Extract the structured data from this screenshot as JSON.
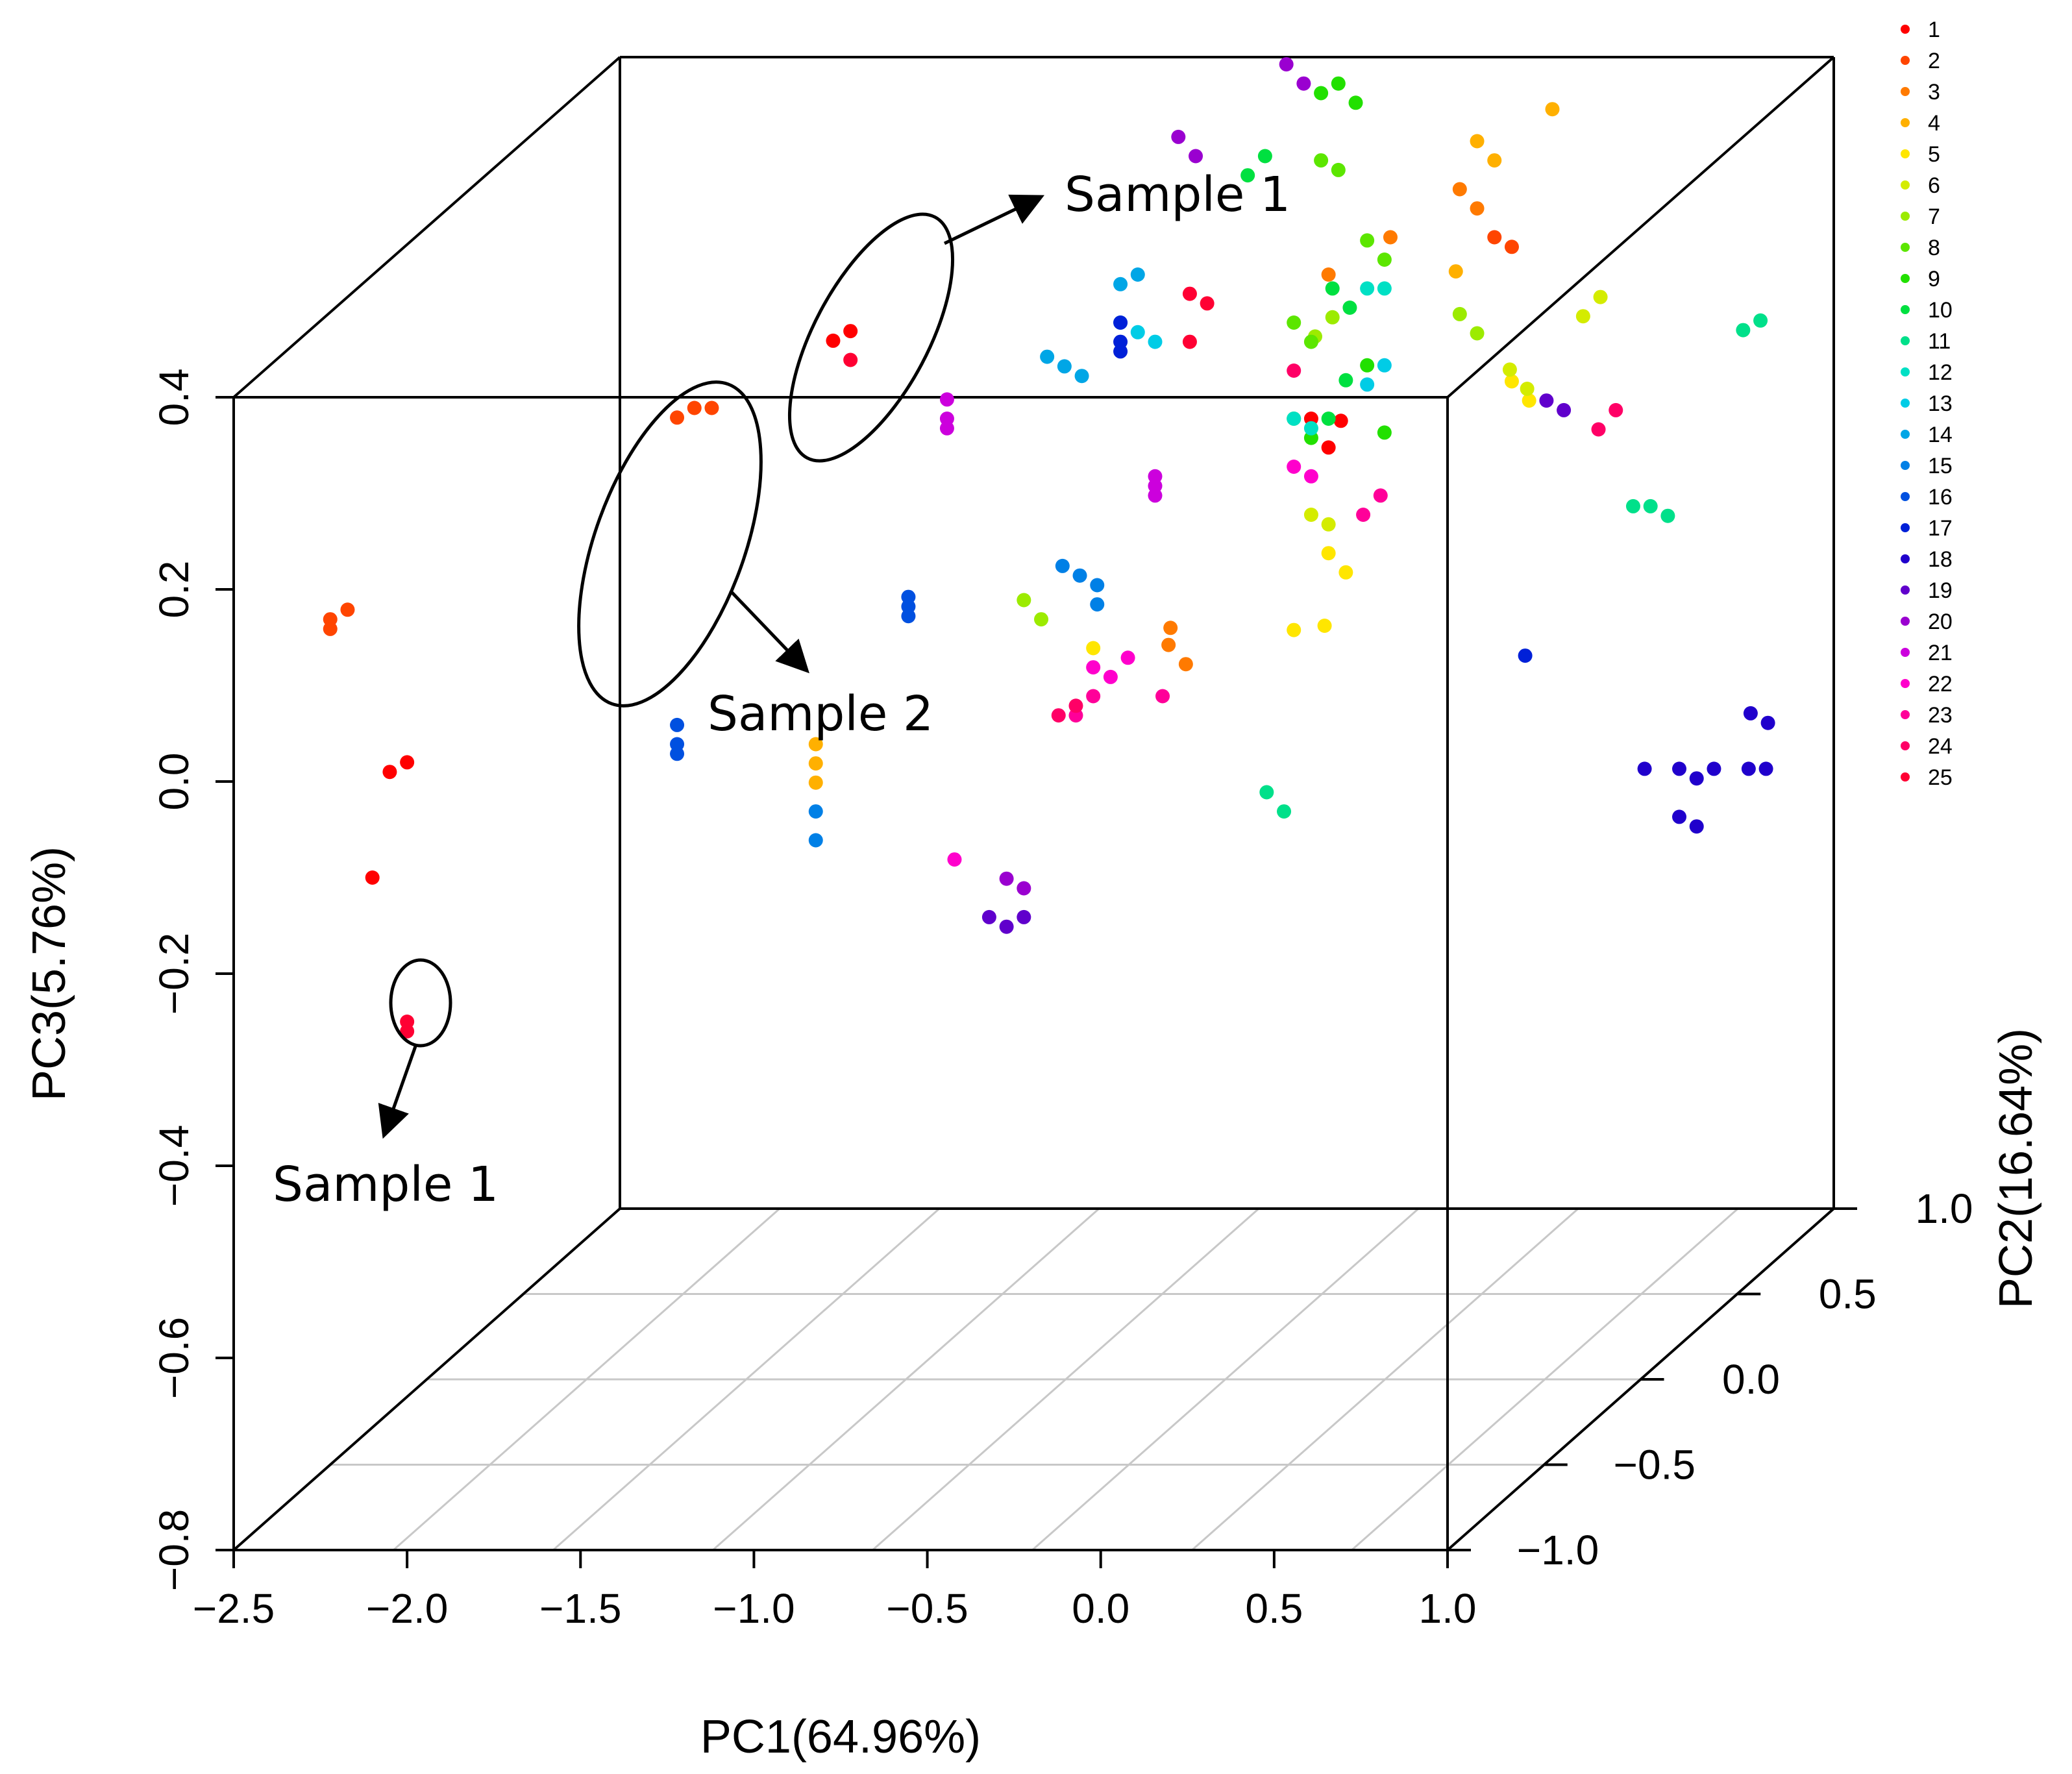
{
  "chart_data": {
    "type": "scatter",
    "projection": "3d",
    "title": "",
    "xlabel": "PC1(64.96%)",
    "ylabel": "PC2(16.64%)",
    "zlabel": "PC3(5.76%)",
    "xlim": [
      -2.5,
      1.0
    ],
    "ylim": [
      -1.0,
      1.0
    ],
    "zlim": [
      -0.8,
      0.4
    ],
    "xticks": [
      "-2.5",
      "-2.0",
      "-1.5",
      "-1.0",
      "-0.5",
      "0.0",
      "0.5",
      "1.0"
    ],
    "yticks": [
      "-1.0",
      "-0.5",
      "0.0",
      "0.5",
      "1.0"
    ],
    "zticks": [
      "-0.8",
      "-0.6",
      "-0.4",
      "-0.2",
      "0.0",
      "0.2",
      "0.4"
    ],
    "legend_position": "right",
    "legend_labels": [
      "1",
      "2",
      "3",
      "4",
      "5",
      "6",
      "7",
      "8",
      "9",
      "10",
      "11",
      "12",
      "13",
      "14",
      "15",
      "16",
      "17",
      "18",
      "19",
      "20",
      "21",
      "22",
      "23",
      "24",
      "25"
    ],
    "colors": [
      "#ff0000",
      "#ff4500",
      "#ff7a00",
      "#ffb000",
      "#ffe600",
      "#d4ec00",
      "#9ceb00",
      "#5ce600",
      "#22e000",
      "#00e040",
      "#00e08a",
      "#00e0c4",
      "#00cce6",
      "#00a6e6",
      "#0080e6",
      "#0050e0",
      "#0020d8",
      "#2000cc",
      "#6000cc",
      "#9a00d0",
      "#cc00dd",
      "#ff00cc",
      "#ff0099",
      "#ff0066",
      "#ff0033"
    ],
    "group_points": [
      [
        [
          -1.0,
          -0.5,
          0.38
        ],
        [
          -1.05,
          -0.5,
          0.37
        ],
        [
          -2.0,
          -1.0,
          0.02
        ],
        [
          -2.05,
          -1.0,
          0.01
        ],
        [
          -2.1,
          -1.0,
          -0.1
        ],
        [
          0.05,
          0.0,
          0.2
        ],
        [
          0.08,
          0.1,
          0.18
        ],
        [
          0.1,
          0.0,
          0.17
        ]
      ],
      [
        [
          -1.4,
          -0.5,
          0.3
        ],
        [
          -1.45,
          -0.5,
          0.3
        ],
        [
          -1.5,
          -0.5,
          0.29
        ],
        [
          -2.5,
          -0.5,
          0.08
        ],
        [
          -2.45,
          -0.5,
          0.09
        ],
        [
          -2.5,
          -0.5,
          0.07
        ],
        [
          0.3,
          0.5,
          0.3
        ],
        [
          0.35,
          0.5,
          0.29
        ]
      ],
      [
        [
          0.1,
          0.0,
          0.35
        ],
        [
          0.2,
          0.5,
          0.35
        ],
        [
          0.25,
          0.5,
          0.33
        ],
        [
          -0.25,
          -0.2,
          0.0
        ],
        [
          -0.2,
          -0.2,
          -0.02
        ],
        [
          0.0,
          0.5,
          0.3
        ],
        [
          -0.3,
          -0.1,
          0.0
        ]
      ],
      [
        [
          0.25,
          0.5,
          0.4
        ],
        [
          0.3,
          0.5,
          0.38
        ],
        [
          0.3,
          0.3,
          0.3
        ],
        [
          -1.1,
          -0.5,
          -0.05
        ],
        [
          -1.1,
          -0.5,
          -0.07
        ],
        [
          -1.1,
          -0.5,
          -0.09
        ],
        [
          0.3,
          0.8,
          0.38
        ]
      ],
      [
        [
          0.1,
          0.0,
          0.06
        ],
        [
          0.15,
          0.0,
          0.04
        ],
        [
          0.2,
          -0.2,
          0.02
        ],
        [
          0.35,
          0.5,
          0.15
        ],
        [
          0.4,
          0.5,
          0.13
        ],
        [
          -0.3,
          -0.5,
          0.05
        ],
        [
          0.0,
          0.0,
          -0.02
        ]
      ],
      [
        [
          0.05,
          0.0,
          0.1
        ],
        [
          0.1,
          0.0,
          0.09
        ],
        [
          0.4,
          0.4,
          0.18
        ],
        [
          0.45,
          0.4,
          0.16
        ],
        [
          0.5,
          0.6,
          0.2
        ],
        [
          0.55,
          0.6,
          0.22
        ]
      ],
      [
        [
          -0.5,
          -0.5,
          0.1
        ],
        [
          -0.45,
          -0.5,
          0.08
        ],
        [
          0.2,
          0.5,
          0.22
        ],
        [
          0.25,
          0.5,
          0.2
        ],
        [
          -0.05,
          0.2,
          0.25
        ],
        [
          0.0,
          0.2,
          0.27
        ]
      ],
      [
        [
          0.0,
          0.0,
          0.3
        ],
        [
          0.05,
          0.0,
          0.28
        ],
        [
          0.1,
          0.2,
          0.35
        ],
        [
          0.15,
          0.2,
          0.33
        ],
        [
          -0.2,
          0.5,
          0.38
        ],
        [
          -0.15,
          0.5,
          0.37
        ]
      ],
      [
        [
          -0.2,
          0.5,
          0.45
        ],
        [
          -0.15,
          0.5,
          0.46
        ],
        [
          -0.1,
          0.5,
          0.44
        ],
        [
          0.0,
          0.0,
          0.2
        ],
        [
          0.05,
          0.0,
          0.18
        ],
        [
          0.1,
          0.2,
          0.22
        ],
        [
          0.15,
          0.2,
          0.15
        ]
      ],
      [
        [
          -0.3,
          0.3,
          0.4
        ],
        [
          -0.25,
          0.3,
          0.42
        ],
        [
          0.0,
          0.2,
          0.3
        ],
        [
          0.05,
          0.2,
          0.28
        ],
        [
          0.1,
          0.0,
          0.2
        ],
        [
          0.15,
          0.0,
          0.24
        ]
      ],
      [
        [
          0.7,
          0.5,
          0.02
        ],
        [
          0.75,
          0.5,
          0.02
        ],
        [
          0.8,
          0.5,
          0.01
        ],
        [
          0.2,
          -0.5,
          -0.1
        ],
        [
          0.25,
          -0.5,
          -0.12
        ],
        [
          0.85,
          0.8,
          0.15
        ],
        [
          0.9,
          0.8,
          0.16
        ]
      ],
      [
        [
          0.0,
          0.0,
          0.2
        ],
        [
          0.05,
          0.0,
          0.19
        ],
        [
          0.1,
          0.2,
          0.3
        ],
        [
          0.15,
          0.2,
          0.3
        ]
      ],
      [
        [
          -0.5,
          0.0,
          0.3
        ],
        [
          -0.45,
          0.0,
          0.29
        ],
        [
          -0.4,
          0.0,
          0.28
        ],
        [
          0.1,
          0.2,
          0.2
        ],
        [
          0.15,
          0.2,
          0.22
        ]
      ],
      [
        [
          -0.6,
          -0.2,
          0.3
        ],
        [
          -0.55,
          -0.2,
          0.29
        ],
        [
          -0.5,
          -0.2,
          0.28
        ],
        [
          -0.5,
          0.0,
          0.34
        ],
        [
          -0.45,
          0.0,
          0.35
        ]
      ],
      [
        [
          -0.5,
          -0.3,
          0.1
        ],
        [
          -0.45,
          -0.3,
          0.09
        ],
        [
          -0.4,
          -0.3,
          0.08
        ],
        [
          -0.4,
          -0.3,
          0.06
        ],
        [
          -1.1,
          -0.5,
          -0.12
        ],
        [
          -1.1,
          -0.5,
          -0.15
        ]
      ],
      [
        [
          -1.0,
          -0.2,
          0.05
        ],
        [
          -1.0,
          -0.2,
          0.04
        ],
        [
          -1.0,
          -0.2,
          0.03
        ],
        [
          -1.5,
          -0.5,
          -0.03
        ],
        [
          -1.5,
          -0.5,
          -0.05
        ],
        [
          -1.5,
          -0.5,
          -0.06
        ]
      ],
      [
        [
          -0.5,
          0.0,
          0.3
        ],
        [
          -0.5,
          0.0,
          0.28
        ],
        [
          -0.5,
          0.0,
          0.27
        ],
        [
          0.5,
          0.3,
          -0.1
        ]
      ],
      [
        [
          0.9,
          0.2,
          -0.2
        ],
        [
          1.0,
          0.2,
          -0.2
        ],
        [
          1.05,
          0.2,
          -0.21
        ],
        [
          1.1,
          0.2,
          -0.2
        ],
        [
          1.0,
          0.2,
          -0.25
        ],
        [
          1.05,
          0.2,
          -0.26
        ],
        [
          1.2,
          0.2,
          -0.2
        ],
        [
          1.25,
          0.2,
          -0.2
        ],
        [
          1.15,
          0.3,
          -0.16
        ],
        [
          1.2,
          0.3,
          -0.17
        ]
      ],
      [
        [
          0.45,
          0.5,
          0.13
        ],
        [
          0.5,
          0.5,
          0.12
        ],
        [
          -0.6,
          -0.5,
          -0.23
        ],
        [
          -0.55,
          -0.5,
          -0.24
        ],
        [
          -0.5,
          -0.5,
          -0.23
        ]
      ],
      [
        [
          -0.3,
          0.5,
          0.48
        ],
        [
          -0.25,
          0.5,
          0.46
        ],
        [
          -0.5,
          0.3,
          0.44
        ],
        [
          -0.45,
          0.3,
          0.42
        ],
        [
          -0.5,
          -0.5,
          -0.2
        ],
        [
          -0.55,
          -0.5,
          -0.19
        ]
      ],
      [
        [
          -1.0,
          0.0,
          0.22
        ],
        [
          -1.0,
          0.0,
          0.2
        ],
        [
          -1.0,
          0.0,
          0.19
        ],
        [
          -0.4,
          0.0,
          0.13
        ],
        [
          -0.4,
          0.0,
          0.12
        ],
        [
          -0.4,
          0.0,
          0.14
        ]
      ],
      [
        [
          0.0,
          0.0,
          0.15
        ],
        [
          0.05,
          0.0,
          0.14
        ],
        [
          -0.3,
          -0.5,
          0.03
        ],
        [
          -0.25,
          -0.5,
          0.02
        ],
        [
          -0.2,
          -0.5,
          0.04
        ],
        [
          -0.7,
          -0.5,
          -0.17
        ]
      ],
      [
        [
          -0.3,
          -0.5,
          0.0
        ],
        [
          -0.35,
          -0.5,
          -0.02
        ],
        [
          0.2,
          0.0,
          0.1
        ],
        [
          0.25,
          0.0,
          0.12
        ],
        [
          -0.1,
          -0.5,
          0.0
        ]
      ],
      [
        [
          0.6,
          0.5,
          0.1
        ],
        [
          0.65,
          0.5,
          0.12
        ],
        [
          -0.4,
          -0.5,
          -0.02
        ],
        [
          -0.35,
          -0.5,
          -0.01
        ],
        [
          0.0,
          0.0,
          0.25
        ]
      ],
      [
        [
          -2.0,
          -1.0,
          -0.25
        ],
        [
          -2.0,
          -1.0,
          -0.26
        ],
        [
          -1.0,
          -0.5,
          0.35
        ],
        [
          -0.3,
          0.0,
          0.33
        ],
        [
          -0.25,
          0.0,
          0.32
        ],
        [
          -0.3,
          0.0,
          0.28
        ]
      ]
    ],
    "annotations": [
      {
        "text": "Sample 1"
      },
      {
        "text": "Sample 2"
      },
      {
        "text": "Sample 1"
      }
    ]
  }
}
